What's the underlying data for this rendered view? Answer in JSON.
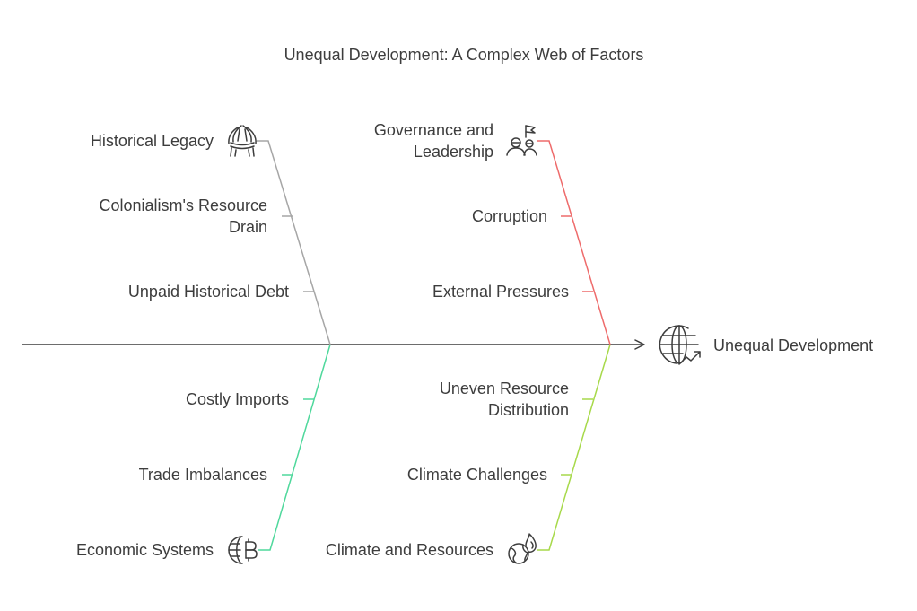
{
  "title": "Unequal Development: A Complex Web of Factors",
  "effect": {
    "label": "Unequal Development",
    "icon": "globe-growth-icon"
  },
  "colors": {
    "spine": "#3d3d3d",
    "historical": "#a6a6a6",
    "governance": "#ee6b6b",
    "economic": "#4fd89c",
    "climate": "#a7d94a",
    "text": "#3d3d3d"
  },
  "categories": [
    {
      "id": "historical",
      "label": [
        "Historical Legacy"
      ],
      "icon": "headdress-icon",
      "causes": [
        {
          "lines": [
            "Colonialism's Resource",
            "Drain"
          ]
        },
        {
          "lines": [
            "Unpaid Historical Debt"
          ]
        }
      ]
    },
    {
      "id": "governance",
      "label": [
        "Governance and",
        "Leadership"
      ],
      "icon": "leaders-flag-icon",
      "causes": [
        {
          "lines": [
            "Corruption"
          ]
        },
        {
          "lines": [
            "External Pressures"
          ]
        }
      ]
    },
    {
      "id": "economic",
      "label": [
        "Economic Systems"
      ],
      "icon": "globe-bitcoin-icon",
      "causes": [
        {
          "lines": [
            "Costly Imports"
          ]
        },
        {
          "lines": [
            "Trade Imbalances"
          ]
        }
      ]
    },
    {
      "id": "climate",
      "label": [
        "Climate and Resources"
      ],
      "icon": "globe-fire-icon",
      "causes": [
        {
          "lines": [
            "Uneven Resource",
            "Distribution"
          ]
        },
        {
          "lines": [
            "Climate Challenges"
          ]
        }
      ]
    }
  ]
}
